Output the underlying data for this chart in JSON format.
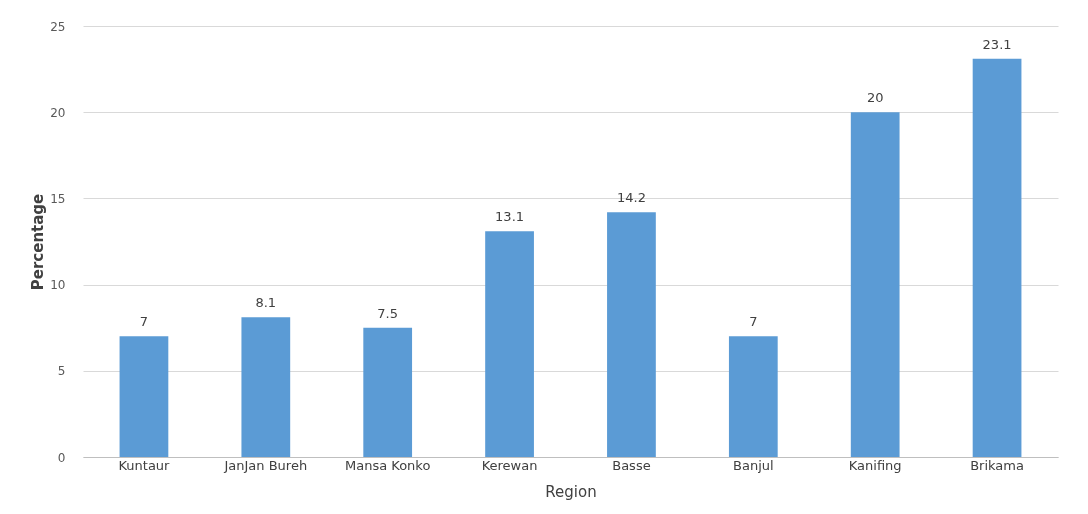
{
  "chart_data": {
    "type": "bar",
    "xlabel": "Region",
    "ylabel": "Percentage",
    "categories": [
      "Kuntaur",
      "JanJan Bureh",
      "Mansa Konko",
      "Kerewan",
      "Basse",
      "Banjul",
      "Kanifing",
      "Brikama"
    ],
    "values": [
      7,
      8.1,
      7.5,
      13.1,
      14.2,
      7,
      20,
      23.1
    ],
    "color": "#5b9bd5",
    "ylim": [
      0,
      25
    ],
    "yticks": [
      0,
      5,
      10,
      15,
      20,
      25
    ],
    "grid": "y",
    "data_labels": true
  }
}
